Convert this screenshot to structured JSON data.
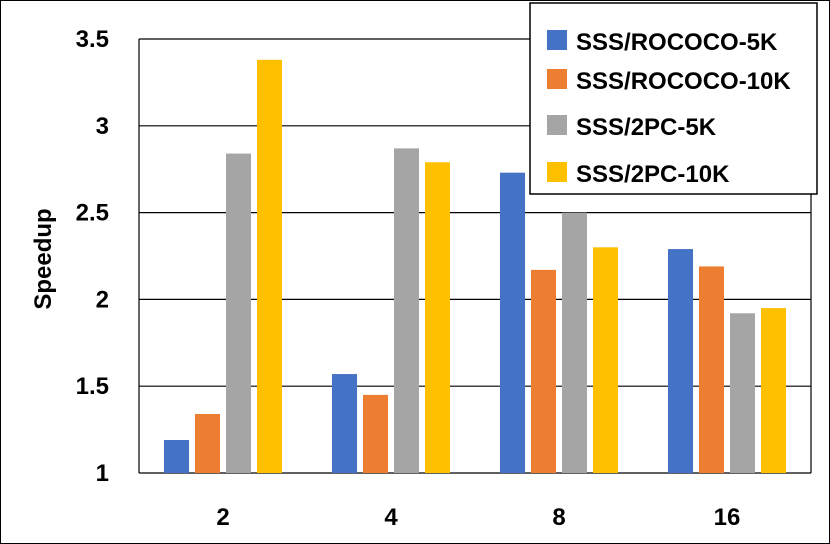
{
  "chart_data": {
    "type": "bar",
    "title": "",
    "xlabel": "",
    "ylabel": "Speedup",
    "ylim": [
      1,
      3.5
    ],
    "yticks": [
      "1",
      "1.5",
      "2",
      "2.5",
      "3",
      "3.5"
    ],
    "categories": [
      "2",
      "4",
      "8",
      "16"
    ],
    "grid": true,
    "legend_position": "top-right",
    "series": [
      {
        "name": "SSS/ROCOCO-5K",
        "color": "#4472C4",
        "values": [
          1.19,
          1.57,
          2.73,
          2.29
        ]
      },
      {
        "name": "SSS/ROCOCO-10K",
        "color": "#ED7D31",
        "values": [
          1.34,
          1.45,
          2.17,
          2.19
        ]
      },
      {
        "name": "SSS/2PC-5K",
        "color": "#A5A5A5",
        "values": [
          2.84,
          2.87,
          2.5,
          1.92
        ]
      },
      {
        "name": "SSS/2PC-10K",
        "color": "#FFC000",
        "values": [
          3.38,
          2.79,
          2.3,
          1.95
        ]
      }
    ]
  }
}
